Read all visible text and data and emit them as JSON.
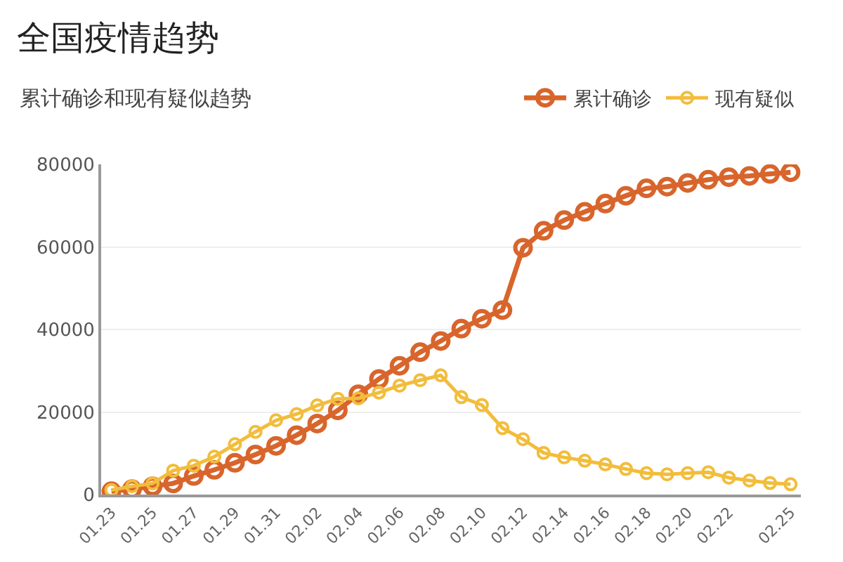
{
  "chart_data": {
    "type": "line",
    "title": "全国疫情趋势",
    "subtitle": "累计确诊和现有疑似趋势",
    "categories": [
      "01.23",
      null,
      "01.25",
      null,
      "01.27",
      null,
      "01.29",
      null,
      "01.31",
      null,
      "02.02",
      null,
      "02.04",
      null,
      "02.06",
      null,
      "02.08",
      null,
      "02.10",
      null,
      "02.12",
      null,
      "02.14",
      null,
      "02.16",
      null,
      "02.18",
      null,
      "02.20",
      null,
      "02.22",
      null,
      null,
      "02.25"
    ],
    "series": [
      {
        "name": "累计确诊",
        "color": "#d8652c",
        "values": [
          800,
          1300,
          2000,
          2700,
          4500,
          6000,
          7700,
          9700,
          11800,
          14400,
          17200,
          20400,
          24300,
          28000,
          31200,
          34500,
          37200,
          40200,
          42600,
          44700,
          59800,
          63900,
          66500,
          68500,
          70500,
          72400,
          74200,
          74600,
          75500,
          76300,
          76900,
          77200,
          77700,
          78100
        ]
      },
      {
        "name": "现有疑似",
        "color": "#f2bd3c",
        "values": [
          1100,
          2000,
          2700,
          5800,
          7000,
          9200,
          12200,
          15200,
          18000,
          19500,
          21600,
          23200,
          23300,
          24700,
          26400,
          27700,
          28900,
          23600,
          21700,
          16100,
          13400,
          10100,
          9000,
          8200,
          7300,
          6200,
          5200,
          4900,
          5200,
          5400,
          4100,
          3400,
          2800,
          2500
        ]
      }
    ],
    "ylim": [
      0,
      80000
    ],
    "yticks": [
      0,
      20000,
      40000,
      60000,
      80000
    ],
    "grid": "y",
    "legend": "top right",
    "marker": "circle",
    "line_style": "solid"
  }
}
